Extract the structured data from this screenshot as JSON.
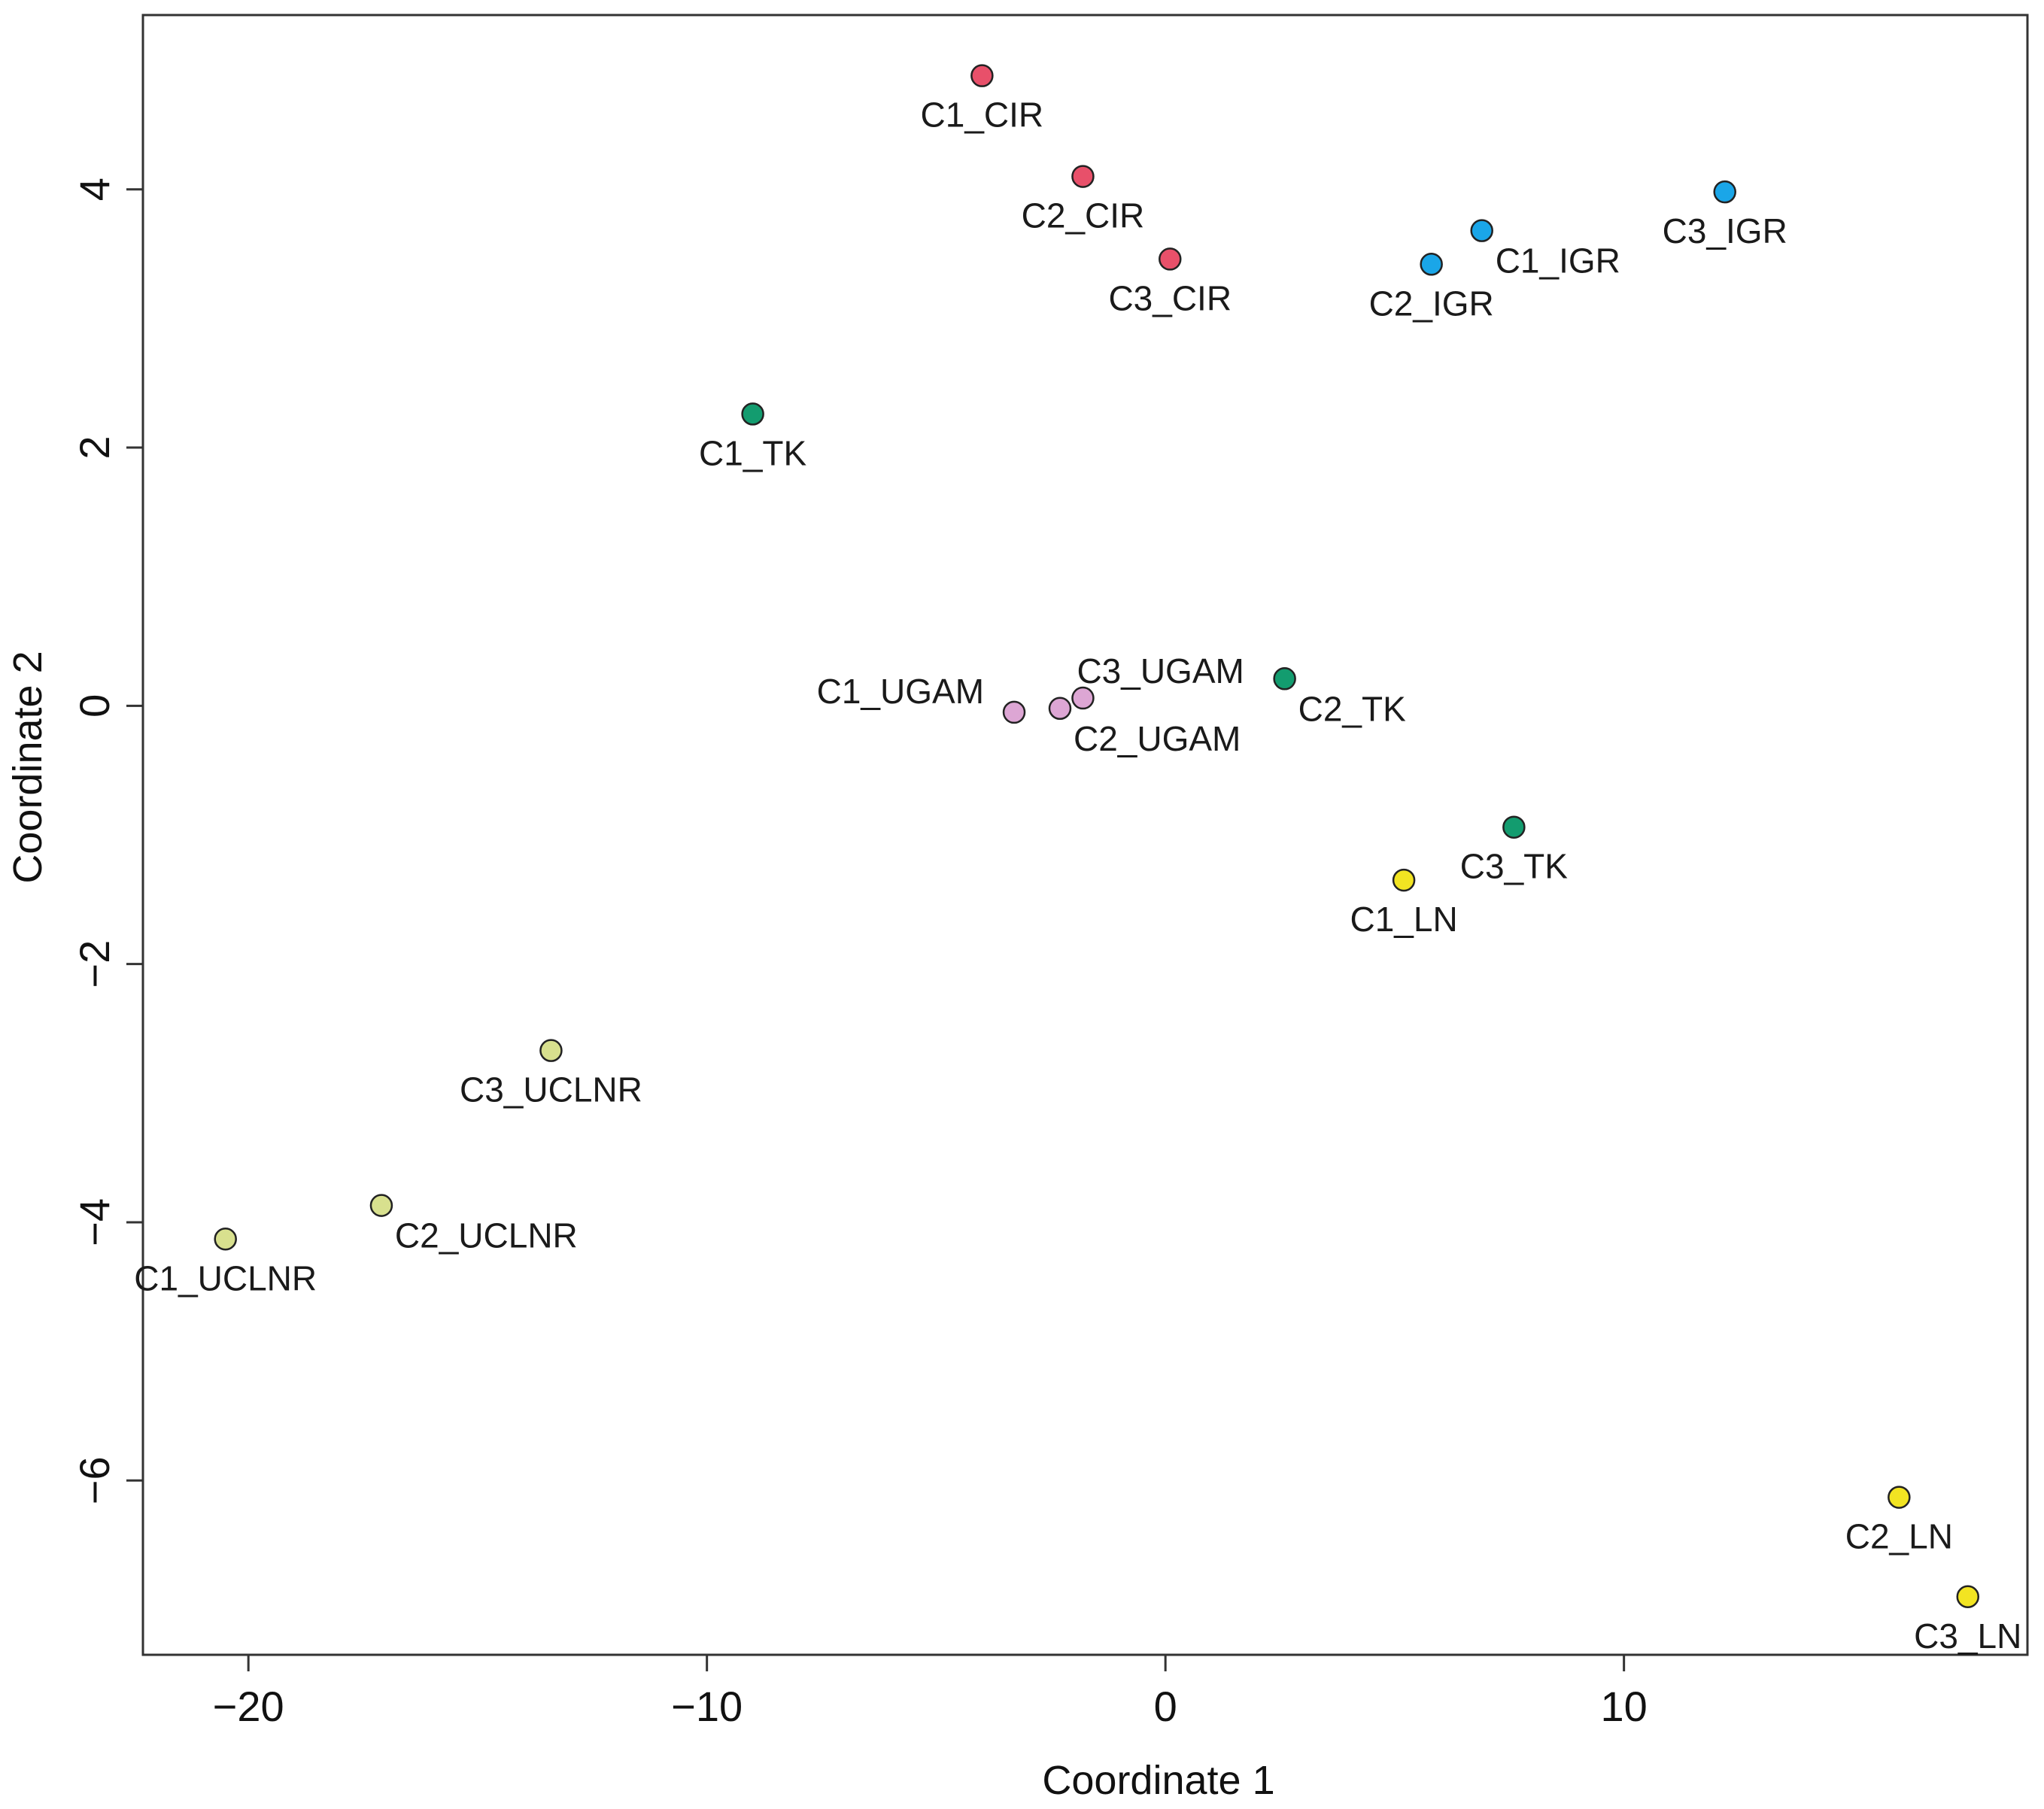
{
  "chart_data": {
    "type": "scatter",
    "title": "",
    "xlabel": "Coordinate 1",
    "ylabel": "Coordinate 2",
    "xlim": [
      -22.3,
      18.8
    ],
    "ylim": [
      -7.35,
      5.35
    ],
    "xticks": [
      -20,
      -10,
      0,
      10
    ],
    "yticks": [
      -6,
      -4,
      -2,
      0,
      2,
      4
    ],
    "xtick_labels": [
      "−20",
      "−10",
      "0",
      "10"
    ],
    "ytick_labels": [
      "−6",
      "−4",
      "−2",
      "0",
      "2",
      "4"
    ],
    "grid": false,
    "colors": {
      "CIR": "#e8506a",
      "IGR": "#1aa6e8",
      "TK": "#139c6f",
      "UGAM": "#dda6d4",
      "LN": "#f2e422",
      "UCLNR": "#d8e08e"
    },
    "points": [
      {
        "label": "C1_CIR",
        "group": "CIR",
        "x": -4.0,
        "y": 4.88,
        "pos": "below"
      },
      {
        "label": "C2_CIR",
        "group": "CIR",
        "x": -1.8,
        "y": 4.1,
        "pos": "below"
      },
      {
        "label": "C3_CIR",
        "group": "CIR",
        "x": 0.1,
        "y": 3.46,
        "pos": "below"
      },
      {
        "label": "C1_IGR",
        "group": "IGR",
        "x": 6.9,
        "y": 3.68,
        "pos": "below-right"
      },
      {
        "label": "C2_IGR",
        "group": "IGR",
        "x": 5.8,
        "y": 3.42,
        "pos": "below"
      },
      {
        "label": "C3_IGR",
        "group": "IGR",
        "x": 12.2,
        "y": 3.98,
        "pos": "below"
      },
      {
        "label": "C1_TK",
        "group": "TK",
        "x": -9.0,
        "y": 2.26,
        "pos": "below"
      },
      {
        "label": "C2_TK",
        "group": "TK",
        "x": 2.6,
        "y": 0.21,
        "pos": "below-right"
      },
      {
        "label": "C3_TK",
        "group": "TK",
        "x": 7.6,
        "y": -0.94,
        "pos": "below"
      },
      {
        "label": "C1_UGAM",
        "group": "UGAM",
        "x": -3.3,
        "y": -0.05,
        "pos": "left"
      },
      {
        "label": "C2_UGAM",
        "group": "UGAM",
        "x": -2.3,
        "y": -0.02,
        "pos": "below-right"
      },
      {
        "label": "C3_UGAM",
        "group": "UGAM",
        "x": -1.8,
        "y": 0.06,
        "pos": "above-right"
      },
      {
        "label": "C1_LN",
        "group": "LN",
        "x": 5.2,
        "y": -1.35,
        "pos": "below"
      },
      {
        "label": "C2_LN",
        "group": "LN",
        "x": 16.0,
        "y": -6.13,
        "pos": "below"
      },
      {
        "label": "C3_LN",
        "group": "LN",
        "x": 17.5,
        "y": -6.9,
        "pos": "below"
      },
      {
        "label": "C1_UCLNR",
        "group": "UCLNR",
        "x": -20.5,
        "y": -4.13,
        "pos": "below"
      },
      {
        "label": "C2_UCLNR",
        "group": "UCLNR",
        "x": -17.1,
        "y": -3.87,
        "pos": "below-right"
      },
      {
        "label": "C3_UCLNR",
        "group": "UCLNR",
        "x": -13.4,
        "y": -2.67,
        "pos": "below"
      }
    ]
  }
}
